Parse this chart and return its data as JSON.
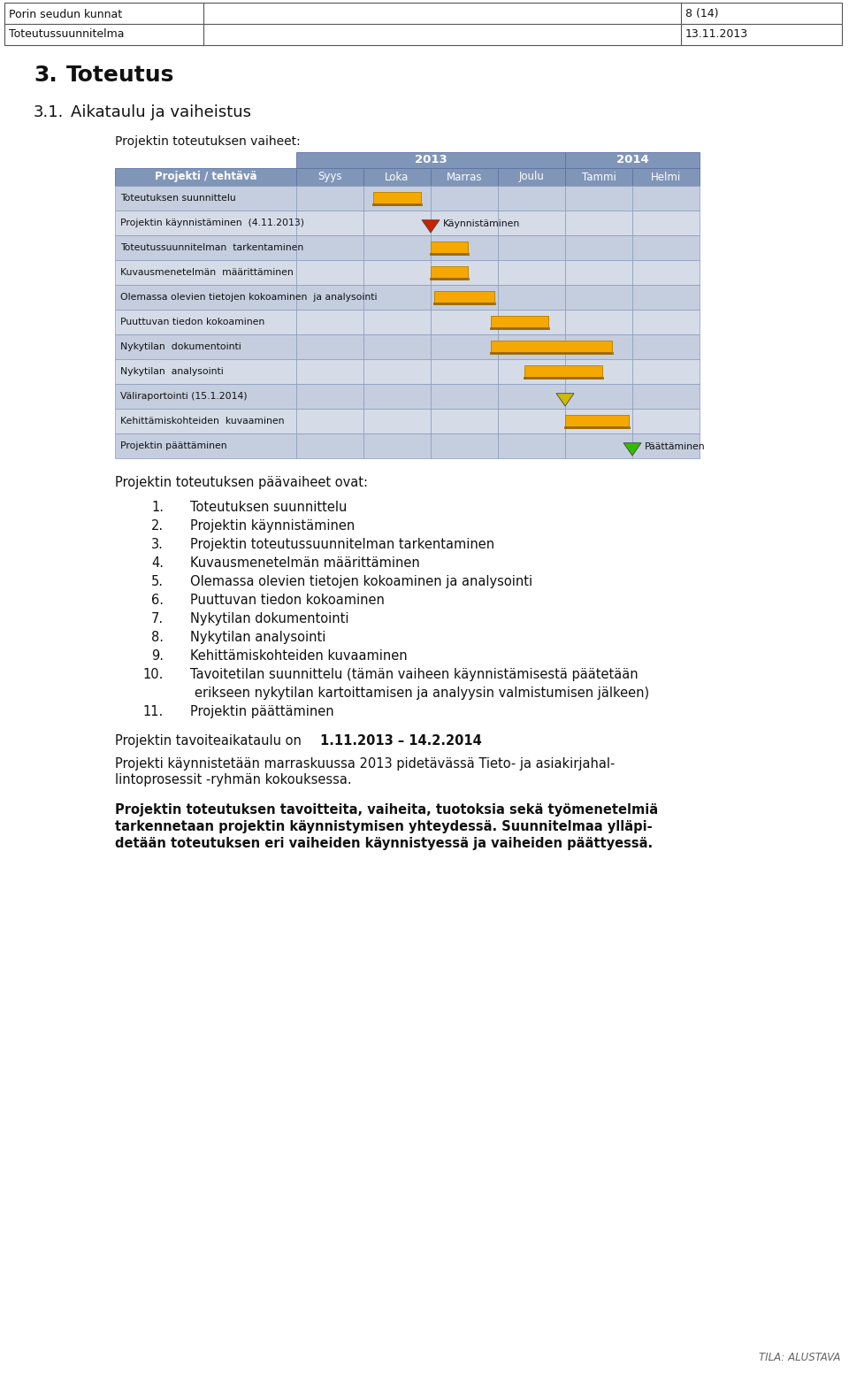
{
  "header_left1": "Porin seudun kunnat",
  "header_right1": "8 (14)",
  "header_left2": "Toteutussuunnitelma",
  "header_right2": "13.11.2013",
  "section_num": "3.",
  "section_title": "Toteutus",
  "subsection_num": "3.1.",
  "subsection_title": "Aikataulu ja vaiheistus",
  "gantt_intro": "Projektin toteutuksen vaiheet:",
  "year_headers": [
    "2013",
    "2014"
  ],
  "month_headers": [
    "Syys",
    "Loka",
    "Marras",
    "Joulu",
    "Tammi",
    "Helmi"
  ],
  "tasks": [
    "Toteutuksen suunnittelu",
    "Projektin käynnistäminen  (4.11.2013)",
    "Toteutussuunnitelman  tarkentaminen",
    "Kuvausmenetelmän  määrittäminen",
    "Olemassa olevien tietojen kokoaminen  ja analysointi",
    "Puuttuvan tiedon kokoaminen",
    "Nykytilan  dokumentointi",
    "Nykytilan  analysointi",
    "Väliraportointi (15.1.2014)",
    "Kehittämiskohteiden  kuvaaminen",
    "Projektin päättäminen"
  ],
  "bar_specs": [
    {
      "ti": 0,
      "cs": 1.15,
      "ce": 1.85,
      "type": "bar",
      "color": "#F5A800",
      "label": ""
    },
    {
      "ti": 1,
      "cs": 2.0,
      "ce": 2.0,
      "type": "milestone",
      "color": "#CC2200",
      "label": "Käynnistäminen"
    },
    {
      "ti": 2,
      "cs": 2.0,
      "ce": 2.55,
      "type": "bar",
      "color": "#F5A800",
      "label": ""
    },
    {
      "ti": 3,
      "cs": 2.0,
      "ce": 2.55,
      "type": "bar",
      "color": "#F5A800",
      "label": ""
    },
    {
      "ti": 4,
      "cs": 2.05,
      "ce": 2.95,
      "type": "bar",
      "color": "#F5A800",
      "label": ""
    },
    {
      "ti": 5,
      "cs": 2.9,
      "ce": 3.75,
      "type": "bar",
      "color": "#F5A800",
      "label": ""
    },
    {
      "ti": 6,
      "cs": 2.9,
      "ce": 4.7,
      "type": "bar",
      "color": "#F5A800",
      "label": ""
    },
    {
      "ti": 7,
      "cs": 3.4,
      "ce": 4.55,
      "type": "bar",
      "color": "#F5A800",
      "label": ""
    },
    {
      "ti": 8,
      "cs": 4.0,
      "ce": 4.0,
      "type": "milestone",
      "color": "#CCBB00",
      "label": ""
    },
    {
      "ti": 9,
      "cs": 4.0,
      "ce": 4.95,
      "type": "bar",
      "color": "#F5A800",
      "label": ""
    },
    {
      "ti": 10,
      "cs": 5.0,
      "ce": 5.0,
      "type": "milestone",
      "color": "#33BB00",
      "label": "Päättäminen"
    }
  ],
  "list_items": [
    {
      "num": "1.",
      "text": "Toteutuksen suunnittelu",
      "wrap": false
    },
    {
      "num": "2.",
      "text": "Projektin käynnistäminen",
      "wrap": false
    },
    {
      "num": "3.",
      "text": "Projektin toteutussuunnitelman tarkentaminen",
      "wrap": false
    },
    {
      "num": "4.",
      "text": "Kuvausmenetelmän määrittäminen",
      "wrap": false
    },
    {
      "num": "5.",
      "text": "Olemassa olevien tietojen kokoaminen ja analysointi",
      "wrap": false
    },
    {
      "num": "6.",
      "text": "Puuttuvan tiedon kokoaminen",
      "wrap": false
    },
    {
      "num": "7.",
      "text": "Nykytilan dokumentointi",
      "wrap": false
    },
    {
      "num": "8.",
      "text": "Nykytilan analysointi",
      "wrap": false
    },
    {
      "num": "9.",
      "text": "Kehittämiskohteiden kuvaaminen",
      "wrap": false
    },
    {
      "num": "10.",
      "text": "Tavoitetilan suunnittelu (tämän vaiheen käynnistämisestä päätetään erikseen nykytilan kartoittamisen ja analyysin valmistumisen jälkeen)",
      "wrap": true
    },
    {
      "num": "11.",
      "text": "Projektin päättäminen",
      "wrap": false
    }
  ],
  "tavoite_line1": "Projektin tavoiteaikataulu on ",
  "tavoite_bold": "1.11.2013 – 14.2.2014",
  "para2": "Projekti käynnistetään marraskuussa 2013 pidetävässä Tieto- ja asiakirjahal-\nlintoprosessit -ryhmän kokouksessa.",
  "bold_para_line1": "Projektin toteutuksen tavoitteita, vaiheita, tuotoksia sekä työmenetelmiä",
  "bold_para_line2": "tarkennetaan projektin käynnistymisen yhteydessä. Suunnitelmaa ylläpi-",
  "bold_para_line3": "detään toteutuksen eri vaiheiden käynnistyessä ja vaiheiden päättyessä.",
  "footer_text": "TILA: ALUSTAVA",
  "gantt_header_bg": "#8096B8",
  "gantt_row_bg1": "#C5CEDF",
  "gantt_row_bg2": "#D5DCE8",
  "bar_orange": "#F5A800",
  "bar_shadow": "#C88000"
}
